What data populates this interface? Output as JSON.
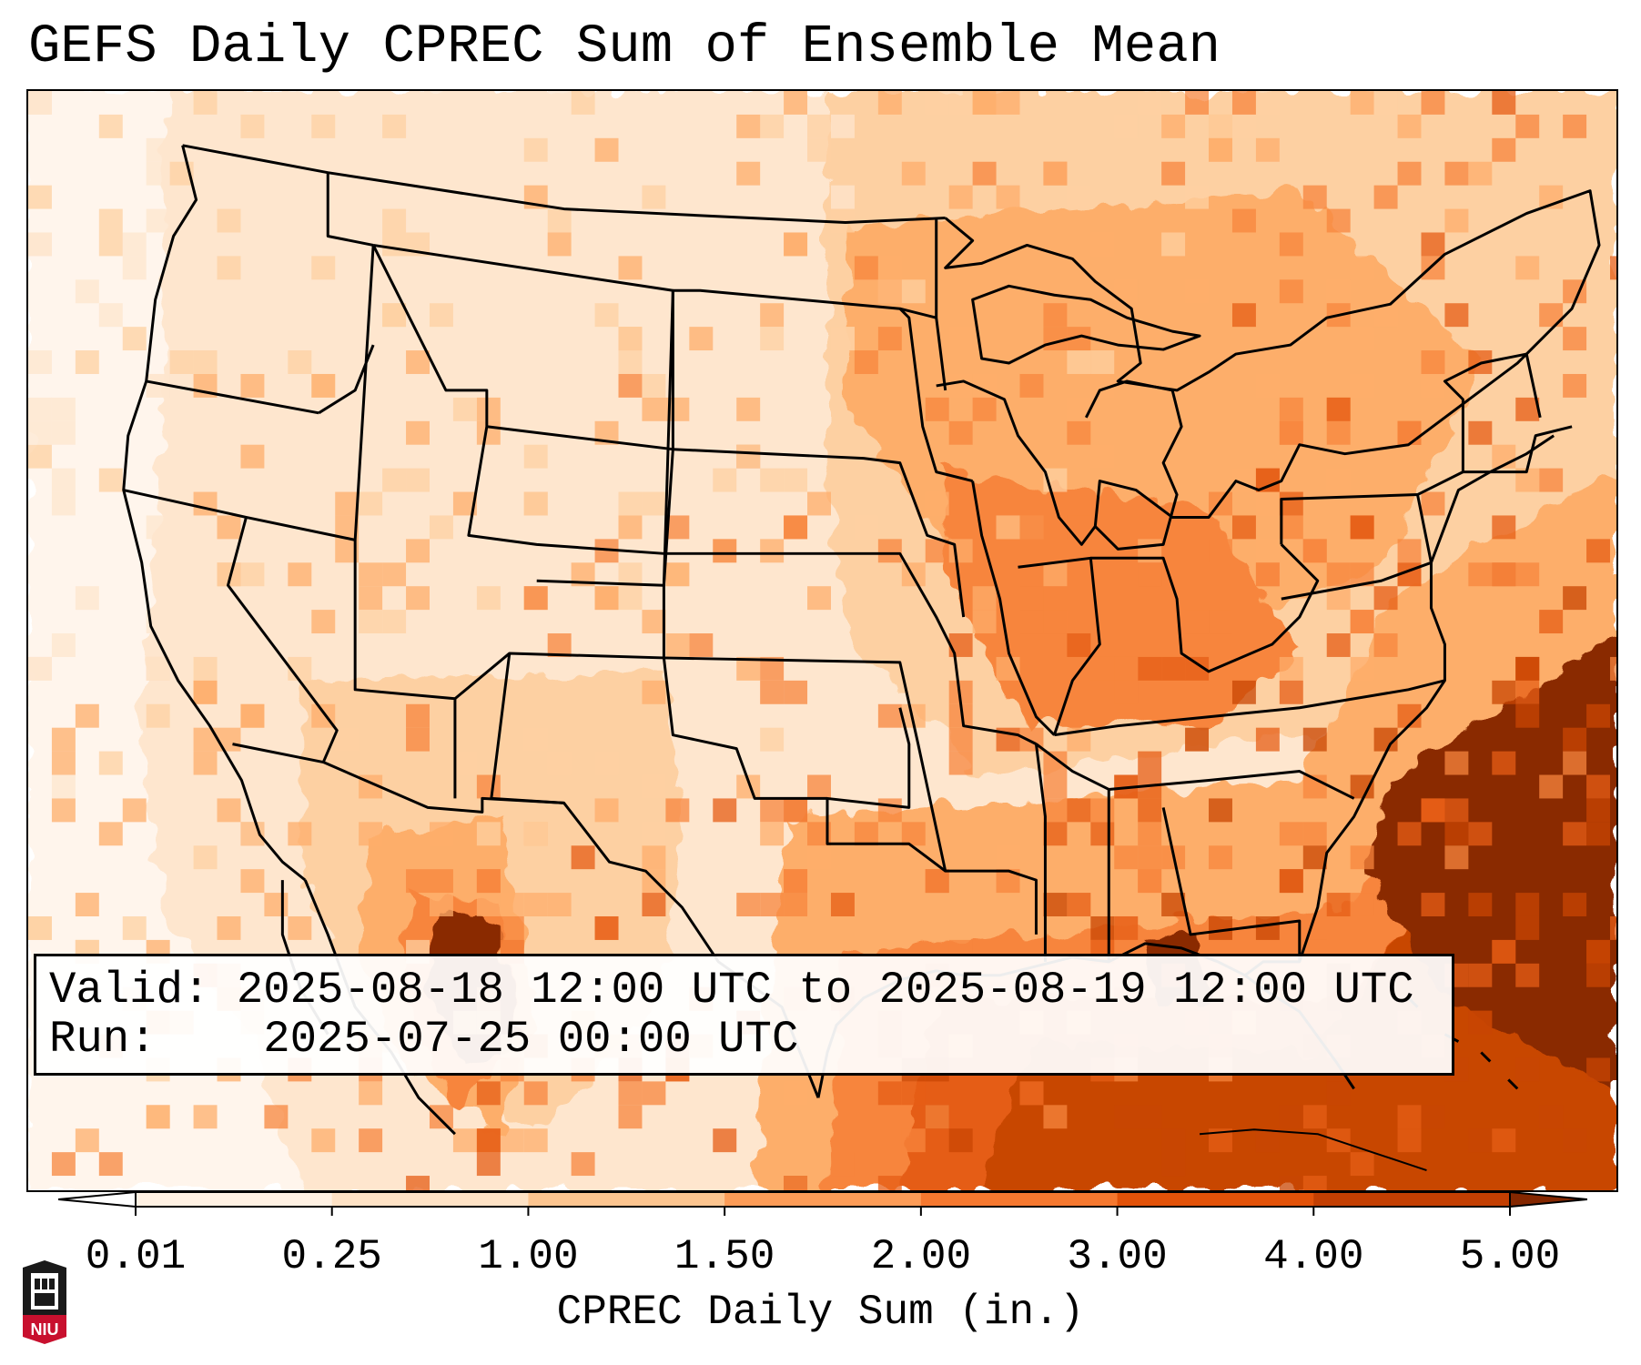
{
  "title": "GEFS Daily CPREC Sum of Ensemble Mean",
  "info": {
    "valid_label": "Valid:",
    "valid_value": "2025-08-18 12:00 UTC to 2025-08-19 12:00 UTC",
    "run_label": "Run:",
    "run_value": "2025-07-25 00:00 UTC"
  },
  "colorbar": {
    "title": "CPREC Daily Sum (in.)",
    "ticks": [
      "0.01",
      "0.25",
      "1.00",
      "1.50",
      "2.00",
      "3.00",
      "4.00",
      "5.00"
    ],
    "under_color": "#ffffff",
    "over_color": "#842700",
    "bin_colors": [
      "#fff1e3",
      "#fee2c5",
      "#fdc590",
      "#fd9c57",
      "#f5782f",
      "#e25209",
      "#c33f02"
    ]
  },
  "logo": {
    "text": "NIU",
    "icon": "university-seal-icon",
    "color": "#c8102e"
  },
  "map": {
    "field": "CPREC",
    "overlays": [
      "state-borders-icon",
      "coastline-icon",
      "country-borders-icon"
    ],
    "palette": {
      "trace": "#fff5ec",
      "light": "#fee6ce",
      "pale": "#fdd0a2",
      "mid": "#fdae6b",
      "orange": "#f7853d",
      "deep": "#e55d15",
      "dark": "#c84603",
      "max": "#8a2b04"
    }
  }
}
